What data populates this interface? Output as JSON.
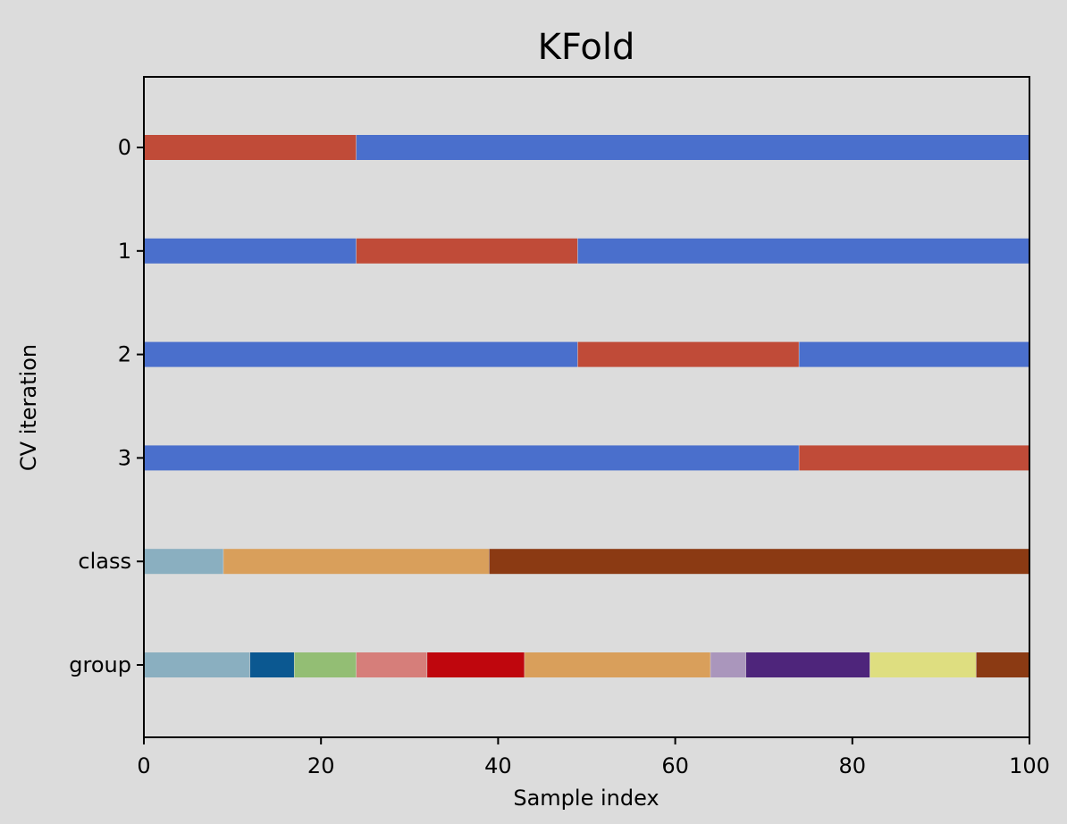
{
  "chart_data": {
    "type": "bar",
    "orientation": "horizontal",
    "title": "KFold",
    "xlabel": "Sample index",
    "ylabel": "CV iteration",
    "xlim": [
      0,
      100
    ],
    "x_ticks": [
      0,
      20,
      40,
      60,
      80,
      100
    ],
    "y_tick_labels": [
      "0",
      "1",
      "2",
      "3",
      "class",
      "group"
    ],
    "grid": false,
    "legend": null,
    "colors": {
      "train": "#4a6fcc",
      "test": "#c04b38",
      "background": "#dcdcdc",
      "axes_face": "#dcdcdc"
    },
    "rows": [
      {
        "label": "0",
        "segments": [
          {
            "start": 0,
            "end": 24,
            "role": "test",
            "color": "#c04b38"
          },
          {
            "start": 24,
            "end": 100,
            "role": "train",
            "color": "#4a6fcc"
          }
        ]
      },
      {
        "label": "1",
        "segments": [
          {
            "start": 0,
            "end": 24,
            "role": "train",
            "color": "#4a6fcc"
          },
          {
            "start": 24,
            "end": 49,
            "role": "test",
            "color": "#c04b38"
          },
          {
            "start": 49,
            "end": 100,
            "role": "train",
            "color": "#4a6fcc"
          }
        ]
      },
      {
        "label": "2",
        "segments": [
          {
            "start": 0,
            "end": 49,
            "role": "train",
            "color": "#4a6fcc"
          },
          {
            "start": 49,
            "end": 74,
            "role": "test",
            "color": "#c04b38"
          },
          {
            "start": 74,
            "end": 100,
            "role": "train",
            "color": "#4a6fcc"
          }
        ]
      },
      {
        "label": "3",
        "segments": [
          {
            "start": 0,
            "end": 74,
            "role": "train",
            "color": "#4a6fcc"
          },
          {
            "start": 74,
            "end": 100,
            "role": "test",
            "color": "#c04b38"
          }
        ]
      },
      {
        "label": "class",
        "segments": [
          {
            "start": 0,
            "end": 9,
            "color": "#8aafc0"
          },
          {
            "start": 9,
            "end": 39,
            "color": "#d99f5b"
          },
          {
            "start": 39,
            "end": 100,
            "color": "#8b3a13"
          }
        ]
      },
      {
        "label": "group",
        "segments": [
          {
            "start": 0,
            "end": 12,
            "color": "#8aafc0"
          },
          {
            "start": 12,
            "end": 17,
            "color": "#0b5891"
          },
          {
            "start": 17,
            "end": 24,
            "color": "#93be74"
          },
          {
            "start": 24,
            "end": 32,
            "color": "#d67e7a"
          },
          {
            "start": 32,
            "end": 43,
            "color": "#bf060d"
          },
          {
            "start": 43,
            "end": 64,
            "color": "#d99f5b"
          },
          {
            "start": 64,
            "end": 68,
            "color": "#aa96bc"
          },
          {
            "start": 68,
            "end": 82,
            "color": "#4e257b"
          },
          {
            "start": 82,
            "end": 94,
            "color": "#dede80"
          },
          {
            "start": 94,
            "end": 100,
            "color": "#8b3a13"
          }
        ]
      }
    ]
  }
}
